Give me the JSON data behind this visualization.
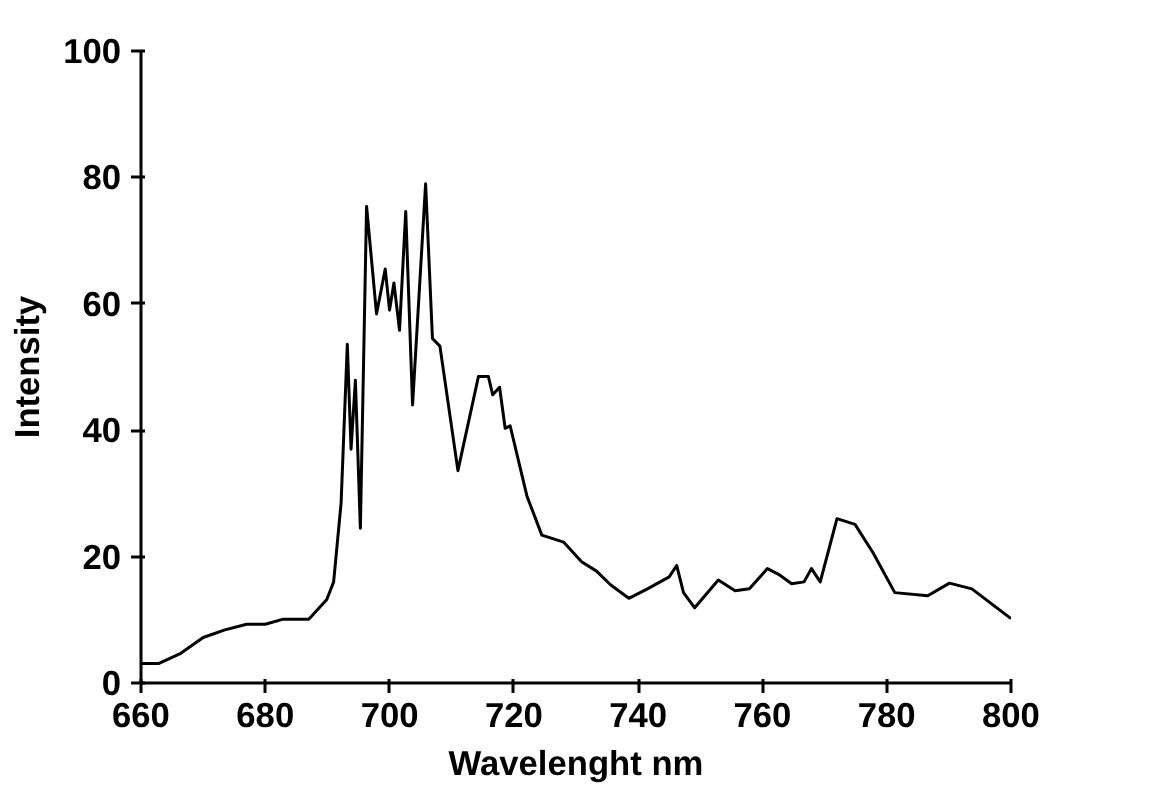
{
  "chart_data": {
    "type": "line",
    "xlabel": "Wavelenght nm",
    "ylabel": "Intensity",
    "xlim": [
      660,
      800
    ],
    "ylim": [
      0,
      100
    ],
    "xticks": [
      660,
      680,
      700,
      720,
      740,
      760,
      780,
      800
    ],
    "yticks": [
      0,
      20,
      40,
      60,
      80,
      100
    ],
    "grid": false,
    "marker": "none",
    "line_style": "solid",
    "series": [
      {
        "color": "#000000",
        "x": [
          660,
          662.9,
          666.4,
          670,
          673.5,
          677,
          680,
          682.9,
          687,
          689.9,
          691,
          692.2,
          693.2,
          693.8,
          694.5,
          695.3,
          696.3,
          697.9,
          699.3,
          700,
          700.7,
          701.6,
          702.6,
          703.7,
          705.8,
          706.9,
          708.1,
          711,
          714.3,
          715.9,
          716.6,
          717.7,
          718.6,
          719.4,
          722.1,
          724.5,
          728,
          730.9,
          733.3,
          735.6,
          738.5,
          741.5,
          745,
          746.2,
          747.3,
          749.1,
          752.9,
          755.6,
          757.9,
          760.8,
          762.6,
          764.7,
          766.7,
          767.9,
          769.3,
          772,
          774.9,
          777.8,
          781.3,
          786.6,
          790.1,
          793.7,
          800
        ],
        "values": [
          3.1,
          3.1,
          4.7,
          7.2,
          8.4,
          9.3,
          9.3,
          10.1,
          10.1,
          13.2,
          16,
          28.5,
          53.6,
          37,
          47.9,
          24.5,
          75.4,
          58.4,
          65.5,
          59,
          63.3,
          55.8,
          74.6,
          44,
          79,
          54.5,
          53.3,
          33.6,
          48.5,
          48.5,
          45.6,
          46.8,
          40.3,
          40.7,
          29.6,
          23.4,
          22.3,
          19.2,
          17.7,
          15.5,
          13.4,
          14.9,
          16.8,
          18.6,
          14.3,
          11.9,
          16.3,
          14.6,
          14.9,
          18.1,
          17.2,
          15.7,
          16,
          18.1,
          16,
          26,
          25.1,
          20.6,
          14.3,
          13.8,
          15.8,
          14.9,
          10.2
        ]
      }
    ]
  }
}
